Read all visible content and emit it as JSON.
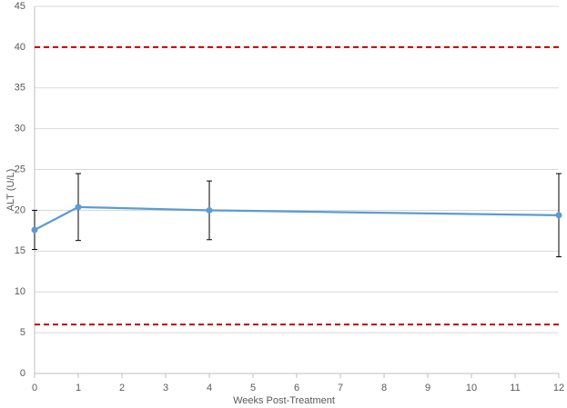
{
  "chart_data": {
    "type": "line",
    "x_label": "Weeks Post-Treatment",
    "y_label": "ALT (U/L)",
    "x": [
      0,
      1,
      4,
      12
    ],
    "series": [
      {
        "color": "#5b9bd5",
        "values": [
          17.6,
          20.4,
          20.0,
          19.4
        ],
        "errors": [
          2.4,
          4.1,
          3.6,
          5.1
        ]
      }
    ],
    "xlim": [
      0,
      12
    ],
    "xticks": [
      0,
      1,
      2,
      3,
      4,
      5,
      6,
      7,
      8,
      9,
      10,
      11,
      12
    ],
    "ylim": [
      0,
      45
    ],
    "yticks": [
      0,
      5,
      10,
      15,
      20,
      25,
      30,
      35,
      40,
      45
    ],
    "grid": true,
    "reference_lines": [
      {
        "value": 40,
        "color": "#c00000"
      },
      {
        "value": 6,
        "color": "#c00000"
      }
    ]
  }
}
